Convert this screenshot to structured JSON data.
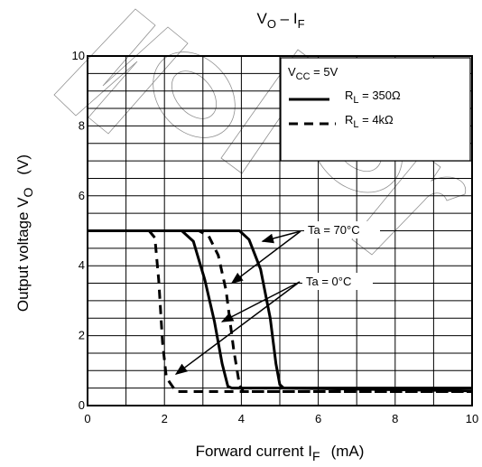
{
  "chart_data": {
    "type": "line",
    "title": {
      "main": "V",
      "sub1": "O",
      "mid": " – I",
      "sub2": "F"
    },
    "xlabel": {
      "main": "Forward current   I",
      "sub": "F",
      "unit": "(mA)"
    },
    "ylabel": {
      "main": "Output voltage   V",
      "sub": "O",
      "unit": "(V)"
    },
    "xlim": [
      0,
      10
    ],
    "ylim": [
      0,
      10
    ],
    "x_ticks": [
      "0",
      "2",
      "4",
      "6",
      "8",
      "10"
    ],
    "y_ticks": [
      "0",
      "2",
      "4",
      "6",
      "8",
      "10"
    ],
    "grid": "on",
    "legend": {
      "placement": "top-right",
      "header": {
        "main": "V",
        "sub": "CC",
        "rest": " = 5V"
      },
      "entries": [
        {
          "main": "R",
          "sub": "L",
          "rest": " = 350Ω",
          "style": "solid"
        },
        {
          "main": "R",
          "sub": "L",
          "rest": " = 4kΩ",
          "style": "dashed"
        }
      ]
    },
    "annotations": [
      {
        "text": "Ta = 70°C"
      },
      {
        "text": "Ta = 0°C"
      }
    ],
    "series": [
      {
        "style": "solid",
        "condition": "Ta = 70°C",
        "points": [
          [
            0,
            5
          ],
          [
            3.95,
            5
          ],
          [
            4.2,
            4.75
          ],
          [
            4.5,
            3.9
          ],
          [
            4.75,
            2.5
          ],
          [
            4.9,
            1.2
          ],
          [
            5.0,
            0.6
          ],
          [
            5.1,
            0.5
          ],
          [
            10,
            0.42
          ]
        ]
      },
      {
        "style": "solid",
        "condition": "Ta = 0°C",
        "points": [
          [
            0,
            5
          ],
          [
            2.45,
            5
          ],
          [
            2.75,
            4.7
          ],
          [
            3.05,
            3.6
          ],
          [
            3.3,
            2.4
          ],
          [
            3.5,
            1.2
          ],
          [
            3.65,
            0.55
          ],
          [
            3.75,
            0.5
          ],
          [
            10,
            0.5
          ]
        ]
      },
      {
        "style": "dashed",
        "condition": "Ta = 70°C",
        "points": [
          [
            0,
            5
          ],
          [
            2.9,
            5
          ],
          [
            3.15,
            4.85
          ],
          [
            3.4,
            4.3
          ],
          [
            3.6,
            3.3
          ],
          [
            3.8,
            1.6
          ],
          [
            3.95,
            0.6
          ],
          [
            4.05,
            0.4
          ],
          [
            10,
            0.4
          ]
        ]
      },
      {
        "style": "dashed",
        "condition": "Ta = 0°C",
        "points": [
          [
            0,
            5
          ],
          [
            1.6,
            5
          ],
          [
            1.75,
            4.8
          ],
          [
            1.85,
            3.6
          ],
          [
            1.95,
            1.8
          ],
          [
            2.05,
            0.8
          ],
          [
            2.3,
            0.4
          ],
          [
            10,
            0.4
          ]
        ]
      }
    ],
    "arrows": [
      {
        "label": "Ta = 70°C",
        "targets": [
          [
            4.55,
            4.7
          ],
          [
            3.75,
            3.5
          ]
        ]
      },
      {
        "label": "Ta = 0°C",
        "targets": [
          [
            3.5,
            2.4
          ],
          [
            2.3,
            0.9
          ]
        ]
      }
    ]
  },
  "watermark": "Not Recommended for New Design"
}
